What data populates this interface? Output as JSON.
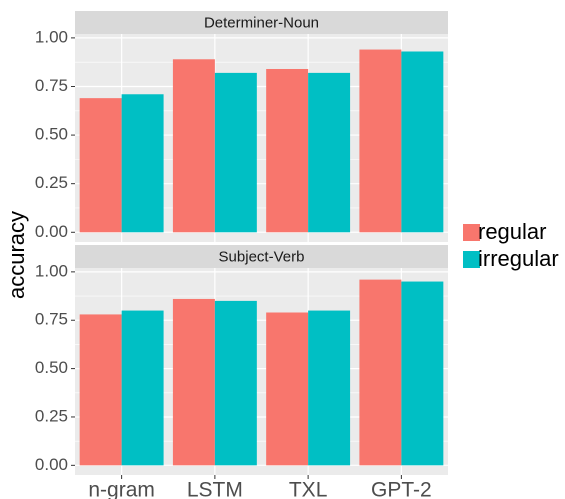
{
  "chart_data": {
    "type": "bar",
    "ylabel": "accuracy",
    "categories": [
      "n-gram",
      "LSTM",
      "TXL",
      "GPT-2"
    ],
    "series": [
      {
        "name": "regular",
        "color": "#F8766D"
      },
      {
        "name": "irregular",
        "color": "#00BFC4"
      }
    ],
    "ylim": [
      -0.05,
      1.02
    ],
    "yticks": [
      {
        "value": 0,
        "label": "0.00"
      },
      0.25,
      {
        "value": 0.5,
        "label": "0.50"
      },
      0.75,
      {
        "value": 1,
        "label": "1.00"
      }
    ],
    "grid": true,
    "facets": [
      {
        "title": "Determiner-Noun",
        "values": [
          [
            0.69,
            0.89,
            0.84,
            0.94
          ],
          [
            0.71,
            0.82,
            0.82,
            0.93
          ]
        ]
      },
      {
        "title": "Subject-Verb",
        "values": [
          [
            0.78,
            0.86,
            0.79,
            0.96
          ],
          [
            0.8,
            0.85,
            0.8,
            0.95
          ]
        ]
      }
    ]
  }
}
